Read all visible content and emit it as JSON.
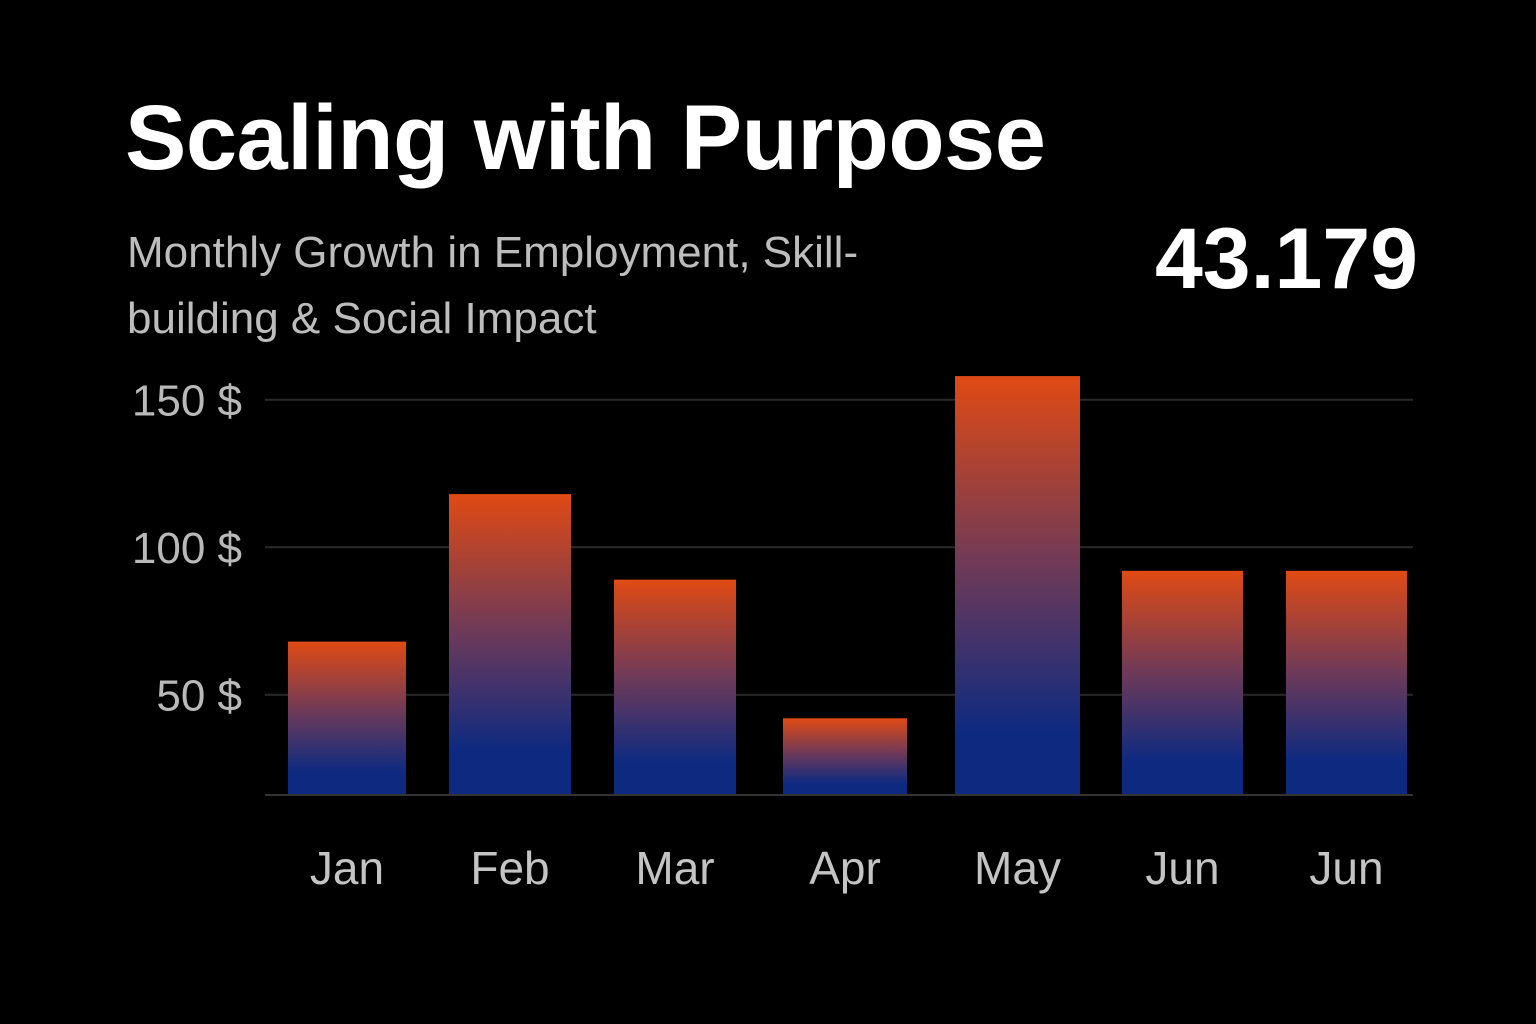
{
  "header": {
    "title": "Scaling with Purpose",
    "subtitle": "Monthly Growth in Employment, Skill-building & Social Impact",
    "headline_value": "43.179"
  },
  "colors": {
    "background": "#000000",
    "bar_top": "#e04a14",
    "bar_mid": "#6f3a58",
    "bar_bottom": "#0e2a80",
    "gridline": "#2a2a2a"
  },
  "chart_data": {
    "type": "bar",
    "title": "Scaling with Purpose",
    "subtitle": "Monthly Growth in Employment, Skill-building & Social Impact",
    "categories": [
      "Jan",
      "Feb",
      "Mar",
      "Apr",
      "May",
      "Jun",
      "Jun"
    ],
    "values": [
      68,
      118,
      89,
      42,
      158,
      92,
      92
    ],
    "yticks": [
      50,
      100,
      150
    ],
    "ytick_labels": [
      "50 $",
      "100 $",
      "150 $"
    ],
    "ylim": [
      16,
      176
    ],
    "grid": true,
    "xlabel": "",
    "ylabel": ""
  }
}
